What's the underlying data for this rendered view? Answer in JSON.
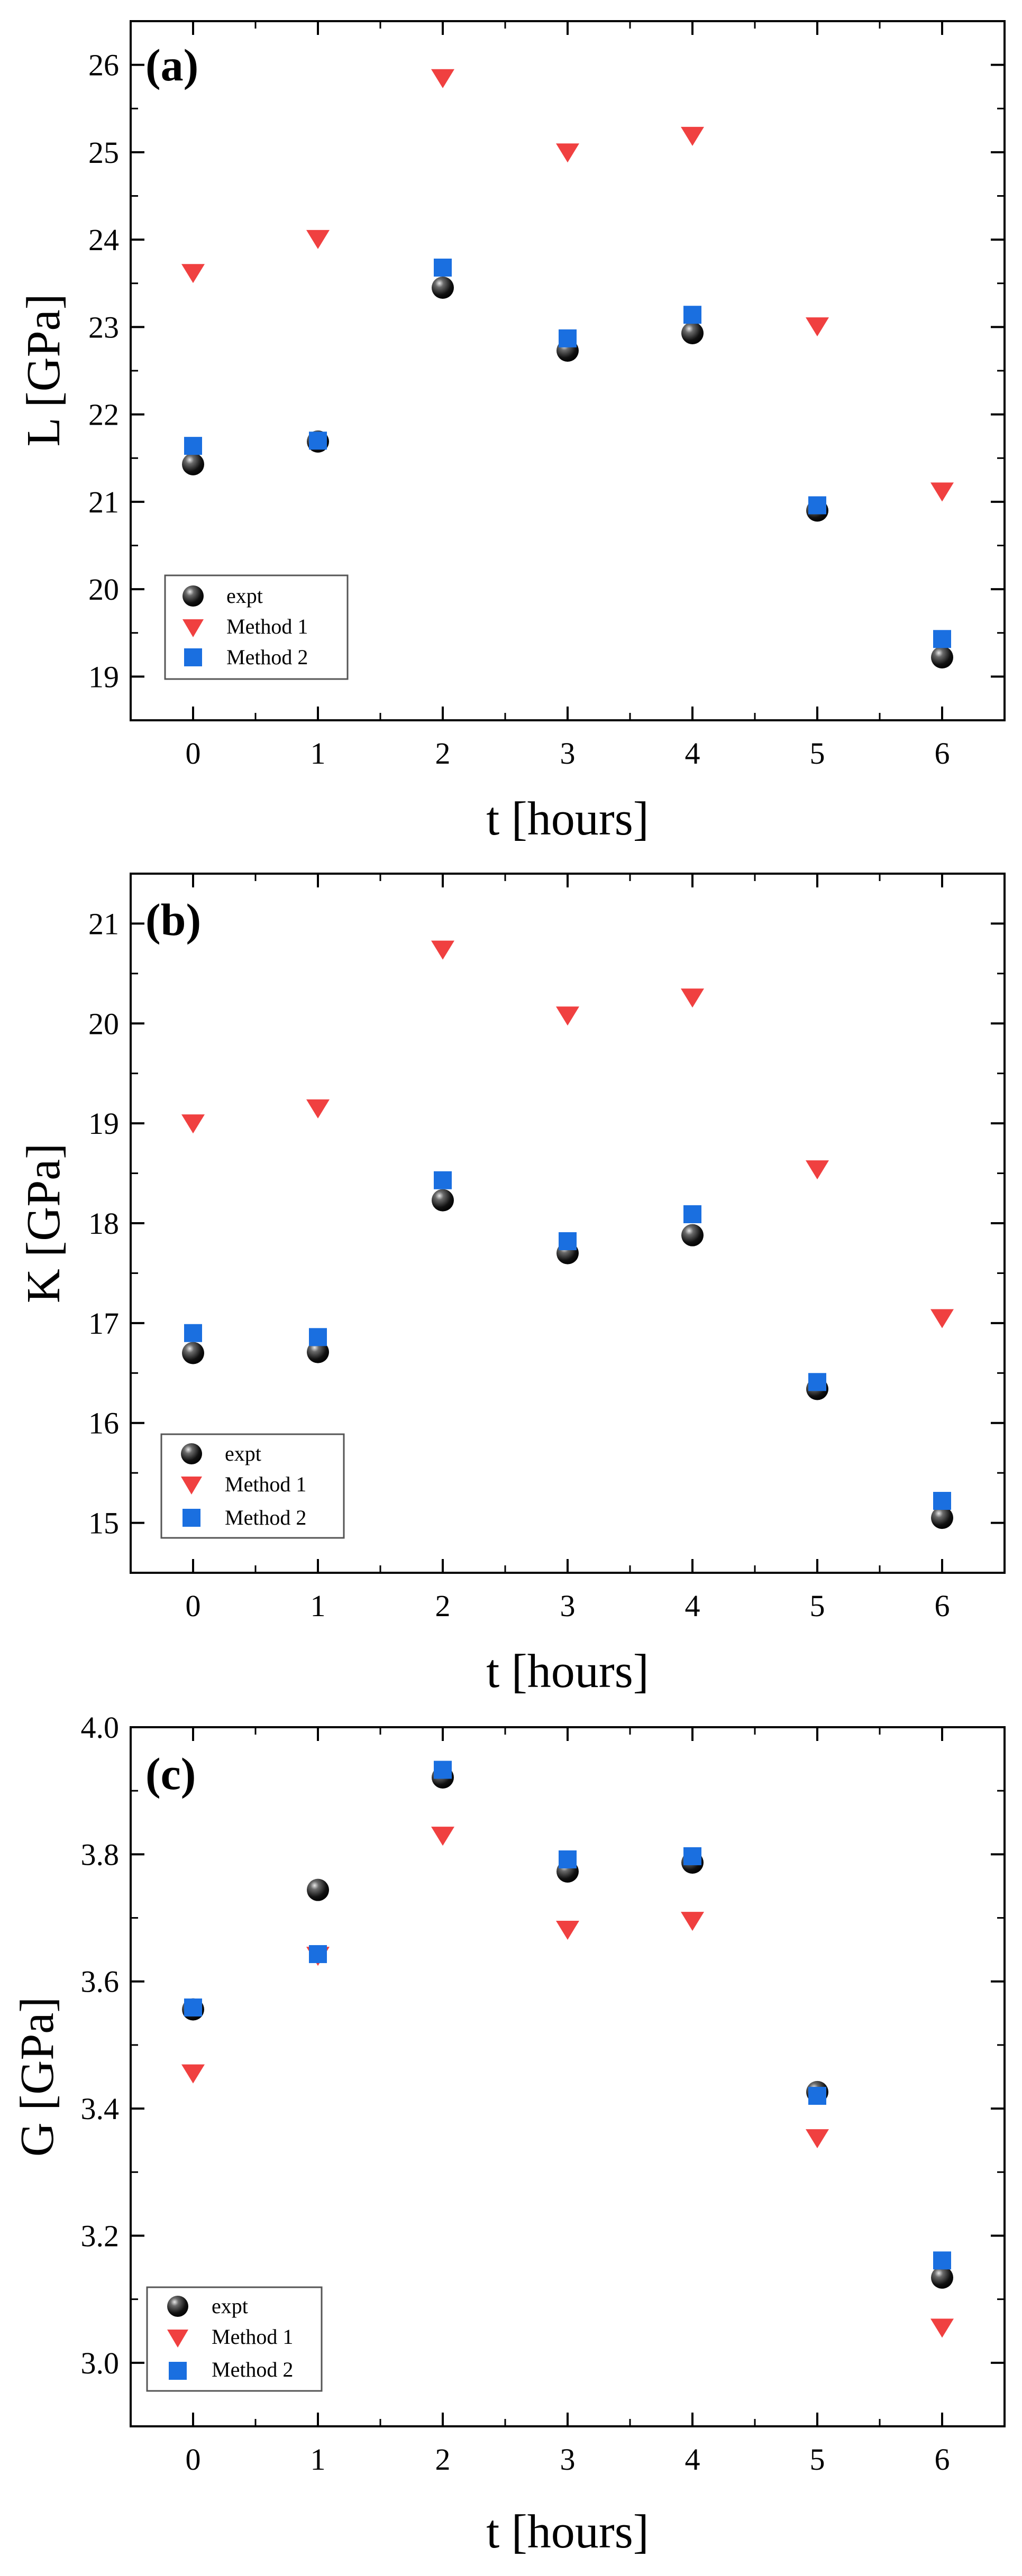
{
  "chart_data": [
    {
      "type": "scatter",
      "panel_label": "(a)",
      "xlabel": "t [hours]",
      "ylabel": "L [GPa]",
      "xlim": [
        -0.5,
        6.5
      ],
      "ylim": [
        18.5,
        26.5
      ],
      "xticks": [
        "0",
        "1",
        "2",
        "3",
        "4",
        "5",
        "6"
      ],
      "yticks": [
        "19",
        "20",
        "21",
        "22",
        "23",
        "24",
        "25",
        "26"
      ],
      "grid": false,
      "legend_position": "bottom-left",
      "x": [
        0,
        1,
        2,
        3,
        4,
        5,
        6
      ],
      "series": [
        {
          "name": "expt",
          "marker": "sphere",
          "color": "#000000",
          "values": [
            21.43,
            21.69,
            23.45,
            22.73,
            22.93,
            20.9,
            19.22
          ]
        },
        {
          "name": "Method 1",
          "marker": "triangle-down",
          "color": "#f04040",
          "values": [
            23.63,
            24.02,
            25.86,
            25.01,
            25.2,
            23.02,
            21.13
          ]
        },
        {
          "name": "Method 2",
          "marker": "square",
          "color": "#1a6fe0",
          "values": [
            21.64,
            21.7,
            23.68,
            22.87,
            23.14,
            20.96,
            19.43
          ]
        }
      ]
    },
    {
      "type": "scatter",
      "panel_label": "(b)",
      "xlabel": "t [hours]",
      "ylabel": "K [GPa]",
      "xlim": [
        -0.5,
        6.5
      ],
      "ylim": [
        14.5,
        21.5
      ],
      "xticks": [
        "0",
        "1",
        "2",
        "3",
        "4",
        "5",
        "6"
      ],
      "yticks": [
        "15",
        "16",
        "17",
        "18",
        "19",
        "20",
        "21"
      ],
      "grid": false,
      "legend_position": "bottom-left",
      "x": [
        0,
        1,
        2,
        3,
        4,
        5,
        6
      ],
      "series": [
        {
          "name": "expt",
          "marker": "sphere",
          "color": "#000000",
          "values": [
            16.7,
            16.71,
            18.23,
            17.7,
            17.88,
            16.34,
            15.05
          ]
        },
        {
          "name": "Method 1",
          "marker": "triangle-down",
          "color": "#f04040",
          "values": [
            19.01,
            19.16,
            20.75,
            20.09,
            20.27,
            18.55,
            17.06
          ]
        },
        {
          "name": "Method 2",
          "marker": "square",
          "color": "#1a6fe0",
          "values": [
            16.9,
            16.86,
            18.43,
            17.82,
            18.09,
            16.41,
            15.22
          ]
        }
      ]
    },
    {
      "type": "scatter",
      "panel_label": "(c)",
      "xlabel": "t [hours]",
      "ylabel": "G [GPa]",
      "xlim": [
        -0.5,
        6.5
      ],
      "ylim": [
        2.9,
        4.0
      ],
      "xticks": [
        "0",
        "1",
        "2",
        "3",
        "4",
        "5",
        "6"
      ],
      "yticks": [
        "3.0",
        "3.2",
        "3.4",
        "3.6",
        "3.8",
        "4.0"
      ],
      "grid": false,
      "legend_position": "bottom-left",
      "x": [
        0,
        1,
        2,
        3,
        4,
        5,
        6
      ],
      "series": [
        {
          "name": "expt",
          "marker": "sphere",
          "color": "#000000",
          "values": [
            3.556,
            3.744,
            3.921,
            3.773,
            3.787,
            3.426,
            3.134
          ]
        },
        {
          "name": "Method 1",
          "marker": "triangle-down",
          "color": "#f04040",
          "values": [
            3.457,
            3.642,
            3.831,
            3.683,
            3.697,
            3.355,
            3.057
          ]
        },
        {
          "name": "Method 2",
          "marker": "square",
          "color": "#1a6fe0",
          "values": [
            3.559,
            3.643,
            3.933,
            3.792,
            3.797,
            3.42,
            3.161
          ]
        }
      ]
    }
  ]
}
